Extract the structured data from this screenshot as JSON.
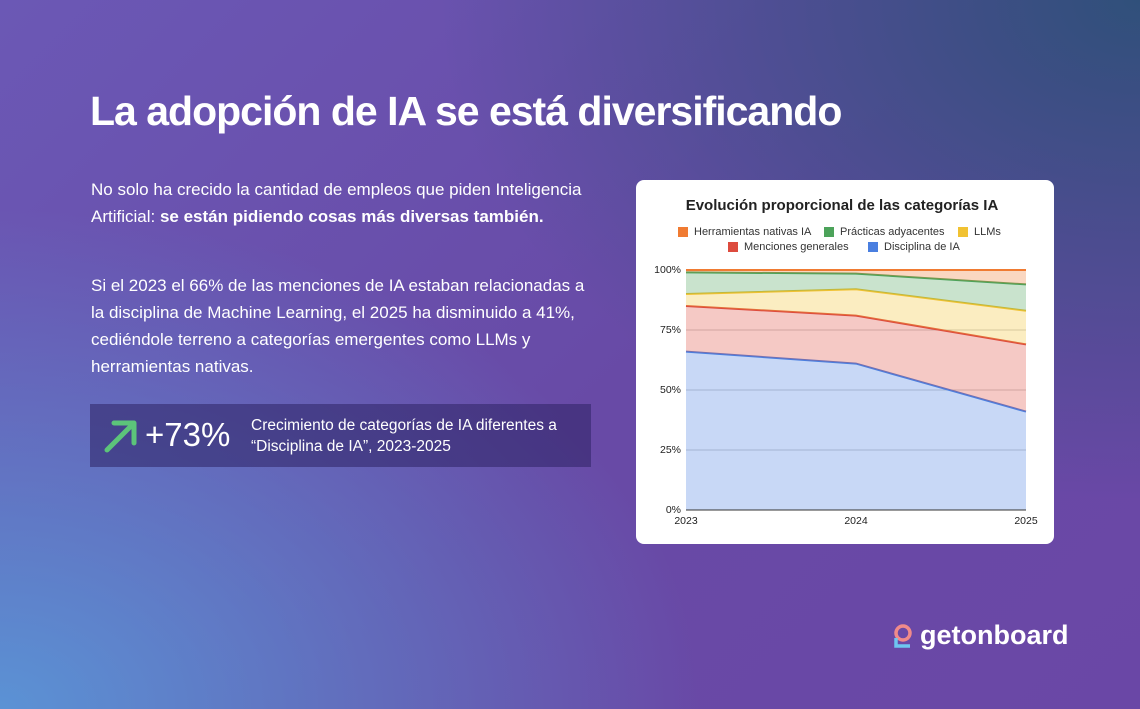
{
  "header": {
    "title": "La adopción de IA se está diversificando"
  },
  "paragraphs": [
    {
      "text": "No solo ha crecido la cantidad de empleos que piden Inteligencia Artificial: ",
      "bold": "se están pidiendo cosas más diversas también."
    },
    {
      "text": "Si el 2023 el 66% de las menciones de IA estaban relacionadas a la disciplina de Machine Learning, el 2025 ha disminuido a 41%, cediéndole terreno a categorías emergentes como LLMs y herramientas nativas."
    }
  ],
  "stat": {
    "value": "+73%",
    "description": "Crecimiento de categorías de IA diferentes a “Disciplina de IA”, 2023-2025"
  },
  "logo": "getonboard",
  "chart_data": {
    "type": "stacked_area",
    "title": "Evolución proporcional de las categorías IA",
    "categories": [
      "2023",
      "2024",
      "2025"
    ],
    "series": [
      {
        "name": "Herramientas nativas IA",
        "color": "#f07b32",
        "values": [
          1,
          1.5,
          6
        ]
      },
      {
        "name": "Prácticas adyacentes",
        "color": "#4ca35a",
        "values": [
          9,
          6.5,
          11
        ]
      },
      {
        "name": "LLMs",
        "color": "#f1c232",
        "values": [
          5,
          11,
          14
        ]
      },
      {
        "name": "Menciones generales",
        "color": "#dd4b3e",
        "values": [
          19,
          20,
          28
        ]
      },
      {
        "name": "Disciplina de IA",
        "color": "#4a7fe0",
        "values": [
          66,
          61,
          41
        ]
      }
    ],
    "ylim": [
      0,
      100
    ],
    "yticks": [
      {
        "value": 0,
        "label": "0%"
      },
      {
        "value": 25,
        "label": "25%"
      },
      {
        "value": 50,
        "label": "50%"
      },
      {
        "value": 75,
        "label": "75%"
      },
      {
        "value": 100,
        "label": "100%"
      }
    ],
    "grid": true,
    "legend": "top"
  }
}
